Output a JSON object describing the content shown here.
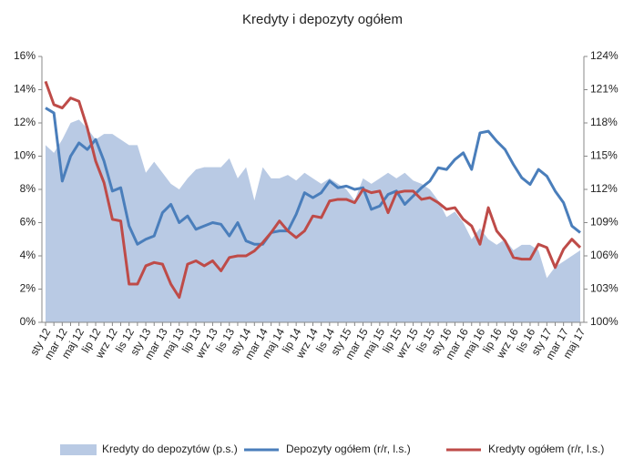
{
  "chart_data": {
    "type": "line",
    "title": "Kredyty i depozyty ogółem",
    "categories": [
      "sty 12",
      null,
      "mar 12",
      null,
      "maj 12",
      null,
      "lip 12",
      null,
      "wrz 12",
      null,
      "lis 12",
      null,
      "sty 13",
      null,
      "mar 13",
      null,
      "maj 13",
      null,
      "lip 13",
      null,
      "wrz 13",
      null,
      "lis 13",
      null,
      "sty 14",
      null,
      "mar 14",
      null,
      "maj 14",
      null,
      "lip 14",
      null,
      "wrz 14",
      null,
      "lis 14",
      null,
      "sty 15",
      null,
      "mar 15",
      null,
      "maj 15",
      null,
      "lip 15",
      null,
      "wrz 15",
      null,
      "lis 15",
      null,
      "sty 16",
      null,
      "mar 16",
      null,
      "maj 16",
      null,
      "lip 16",
      null,
      "wrz 16",
      null,
      "lis 16",
      null,
      "sty 17",
      null,
      "mar 17",
      null,
      "maj 17"
    ],
    "series": [
      {
        "name": "Kredyty do depozytów (p.s.)",
        "type": "area",
        "axis": "y2",
        "color": "#b9cae4",
        "values": [
          116,
          115.3,
          116.5,
          118,
          118.3,
          117.5,
          116.5,
          117,
          117,
          116.5,
          116,
          116,
          113.5,
          114.5,
          113.5,
          112.5,
          112,
          113,
          113.8,
          114,
          114,
          114,
          114.8,
          113,
          114,
          111,
          114,
          113,
          113,
          113.3,
          112.8,
          113.5,
          113,
          112.5,
          113,
          112.5,
          112,
          111,
          113,
          112.5,
          113,
          113.5,
          113,
          113.5,
          112.8,
          112.5,
          112,
          111,
          109.5,
          110,
          109,
          107.5,
          108.5,
          107.5,
          107,
          107.5,
          106.5,
          107,
          107,
          106.5,
          104,
          105,
          105.5,
          106,
          106.5
        ]
      },
      {
        "name": "Depozyty ogółem (r/r, l.s.)",
        "type": "line",
        "color": "#4a7ebb",
        "values": [
          12.9,
          12.6,
          8.5,
          10.0,
          10.8,
          10.4,
          11.0,
          9.7,
          7.9,
          8.1,
          5.8,
          4.7,
          5.0,
          5.2,
          6.6,
          7.1,
          6.0,
          6.4,
          5.6,
          5.8,
          6.0,
          5.9,
          5.2,
          6.0,
          4.9,
          4.7,
          4.7,
          5.4,
          5.5,
          5.5,
          6.5,
          7.8,
          7.5,
          7.8,
          8.5,
          8.1,
          8.2,
          8.0,
          8.1,
          6.8,
          7.0,
          7.7,
          7.9,
          7.1,
          7.6,
          8.1,
          8.5,
          9.3,
          9.2,
          9.8,
          10.2,
          9.2,
          11.4,
          11.5,
          10.9,
          10.4,
          9.5,
          8.7,
          8.3,
          9.2,
          8.8,
          7.9,
          7.2,
          5.8,
          5.4
        ]
      },
      {
        "name": "Kredyty ogółem (r/r, l.s.)",
        "type": "line",
        "color": "#be4b48",
        "values": [
          14.5,
          13.1,
          12.9,
          13.5,
          13.3,
          11.7,
          9.7,
          8.4,
          6.2,
          6.1,
          2.3,
          2.3,
          3.4,
          3.6,
          3.5,
          2.3,
          1.5,
          3.5,
          3.7,
          3.4,
          3.7,
          3.1,
          3.9,
          4.0,
          4.0,
          4.3,
          4.8,
          5.4,
          6.1,
          5.5,
          5.1,
          5.5,
          6.4,
          6.3,
          7.3,
          7.4,
          7.4,
          7.2,
          8.0,
          7.8,
          7.9,
          6.6,
          7.8,
          7.9,
          7.9,
          7.4,
          7.5,
          7.2,
          6.8,
          6.9,
          6.2,
          5.8,
          4.7,
          6.9,
          5.5,
          4.9,
          3.9,
          3.8,
          3.8,
          4.7,
          4.5,
          3.3,
          4.4,
          5.0,
          4.5
        ]
      }
    ],
    "ylim": [
      0,
      16
    ],
    "yticks": [
      {
        "value": 0,
        "label": "0%"
      },
      {
        "value": 2,
        "label": "2%"
      },
      {
        "value": 4,
        "label": "4%"
      },
      {
        "value": 6,
        "label": "6%"
      },
      {
        "value": 8,
        "label": "8%"
      },
      {
        "value": 10,
        "label": "10%"
      },
      {
        "value": 12,
        "label": "12%"
      },
      {
        "value": 14,
        "label": "14%"
      },
      {
        "value": 16,
        "label": "16%"
      }
    ],
    "y2lim": [
      100,
      124
    ],
    "y2ticks": [
      {
        "value": 100,
        "label": "100%"
      },
      {
        "value": 103,
        "label": "103%"
      },
      {
        "value": 106,
        "label": "106%"
      },
      {
        "value": 109,
        "label": "109%"
      },
      {
        "value": 112,
        "label": "112%"
      },
      {
        "value": 115,
        "label": "115%"
      },
      {
        "value": 118,
        "label": "118%"
      },
      {
        "value": 121,
        "label": "121%"
      },
      {
        "value": 124,
        "label": "124%"
      }
    ]
  }
}
